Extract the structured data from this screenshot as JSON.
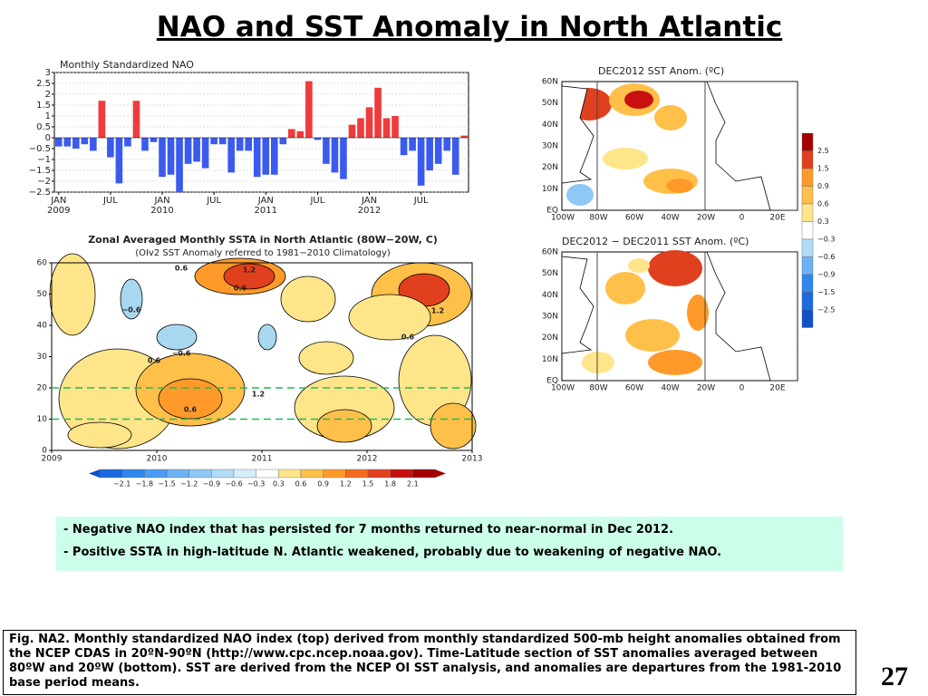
{
  "title": "NAO and SST Anomaly in North Atlantic",
  "chart_data": [
    {
      "type": "bar",
      "title": "Monthly Standardized NAO",
      "categories": [
        "JAN",
        null,
        null,
        null,
        null,
        null,
        "JUL",
        null,
        null,
        null,
        null,
        null,
        "JAN",
        null,
        null,
        null,
        null,
        null,
        "JUL",
        null,
        null,
        null,
        null,
        null,
        "JAN",
        null,
        null,
        null,
        null,
        null,
        "JUL",
        null,
        null,
        null,
        null,
        null,
        "JAN",
        null,
        null,
        null,
        null,
        null,
        "JUL",
        null,
        null,
        null,
        null,
        null
      ],
      "years": [
        "2009",
        "2010",
        "2011",
        "2012"
      ],
      "values": [
        -0.4,
        -0.4,
        -0.5,
        -0.3,
        -0.6,
        1.7,
        -0.9,
        -2.1,
        -0.4,
        1.7,
        -0.6,
        -0.2,
        -1.8,
        -1.7,
        -2.5,
        -1.2,
        -1.1,
        -1.4,
        -0.3,
        -0.3,
        -1.6,
        -0.6,
        -0.6,
        -1.8,
        -1.7,
        -1.7,
        -0.3,
        0.4,
        0.3,
        2.6,
        -0.1,
        -1.2,
        -1.6,
        -1.9,
        0.6,
        0.9,
        1.4,
        2.3,
        0.9,
        1.0,
        -0.8,
        -0.6,
        -2.2,
        -1.5,
        -1.2,
        -0.6,
        -1.7,
        0.1
      ],
      "pos_color": "#ee3b3b",
      "neg_color": "#3b5bee",
      "ylim": [
        -2.5,
        3
      ],
      "yticks": [
        3,
        {
          "value": 2.5,
          "label": "2.5"
        },
        2,
        {
          "value": 1.5,
          "label": "1.5"
        },
        1,
        {
          "value": 0.5,
          "label": "0.5"
        },
        0,
        {
          "value": -0.5,
          "label": "−0.5"
        },
        {
          "value": -1,
          "label": "−1"
        },
        {
          "value": -1.5,
          "label": "−1.5"
        },
        {
          "value": -2,
          "label": "−2"
        },
        {
          "value": -2.5,
          "label": "−2.5"
        }
      ]
    },
    {
      "type": "contour",
      "title": "Zonal Averaged Monthly SSTA in North Atlantic (80W−20W, C)",
      "subtitle": "(OIv2 SST Anomaly referred to 1981−2010 Climatology)",
      "xlim": [
        2009,
        2013
      ],
      "xticks": [
        2009,
        2010,
        2011,
        2012,
        2013
      ],
      "ylim": [
        0,
        60
      ],
      "yticks": [
        0,
        10,
        20,
        30,
        40,
        50,
        60
      ],
      "hlines": [
        20,
        10
      ],
      "annotations": [
        "0.6",
        "1.2",
        "0.6",
        "−0.6",
        "−0.6",
        "0.6",
        "0.6",
        "1.2",
        "0.6",
        "1.2"
      ],
      "colorbar_labels": [
        "−2.1",
        "−1.8",
        "−1.5",
        "−1.2",
        "−0.9",
        "−0.6",
        "−0.3",
        "0.3",
        "0.6",
        "0.9",
        "1.2",
        "1.5",
        "1.8",
        "2.1"
      ]
    },
    {
      "type": "map",
      "title": "DEC2012 SST Anom. (ºC)",
      "lat_labels": [
        "60N",
        "50N",
        "40N",
        "30N",
        "20N",
        "10N",
        "EQ"
      ],
      "lon_labels": [
        "100W",
        "80W",
        "60W",
        "40W",
        "20W",
        "0",
        "20E"
      ]
    },
    {
      "type": "map",
      "title": "DEC2012 − DEC2011 SST Anom. (ºC)",
      "lat_labels": [
        "60N",
        "50N",
        "40N",
        "30N",
        "20N",
        "10N",
        "EQ"
      ],
      "lon_labels": [
        "100W",
        "80W",
        "60W",
        "40W",
        "20W",
        "0",
        "20E"
      ]
    }
  ],
  "map_colorbar": [
    "2.5",
    "1.5",
    "0.9",
    "0.6",
    "0.3",
    "−0.3",
    "−0.6",
    "−0.9",
    "−1.5",
    "−2.5"
  ],
  "bullets": [
    "- Negative NAO index that has persisted for 7 months returned to near-normal in Dec 2012.",
    "- Positive SSTA in high-latitude N. Atlantic weakened, probably due to weakening of negative NAO."
  ],
  "caption": "Fig. NA2. Monthly standardized NAO index (top) derived from monthly standardized 500-mb height anomalies obtained from the NCEP CDAS in 20ºN-90ºN (http://www.cpc.ncep.noaa.gov).  Time-Latitude section of SST anomalies averaged between 80ºW and 20ºW (bottom). SST are derived from the NCEP OI SST analysis, and anomalies are departures from the 1981-2010 base period means.",
  "page_number": "27"
}
